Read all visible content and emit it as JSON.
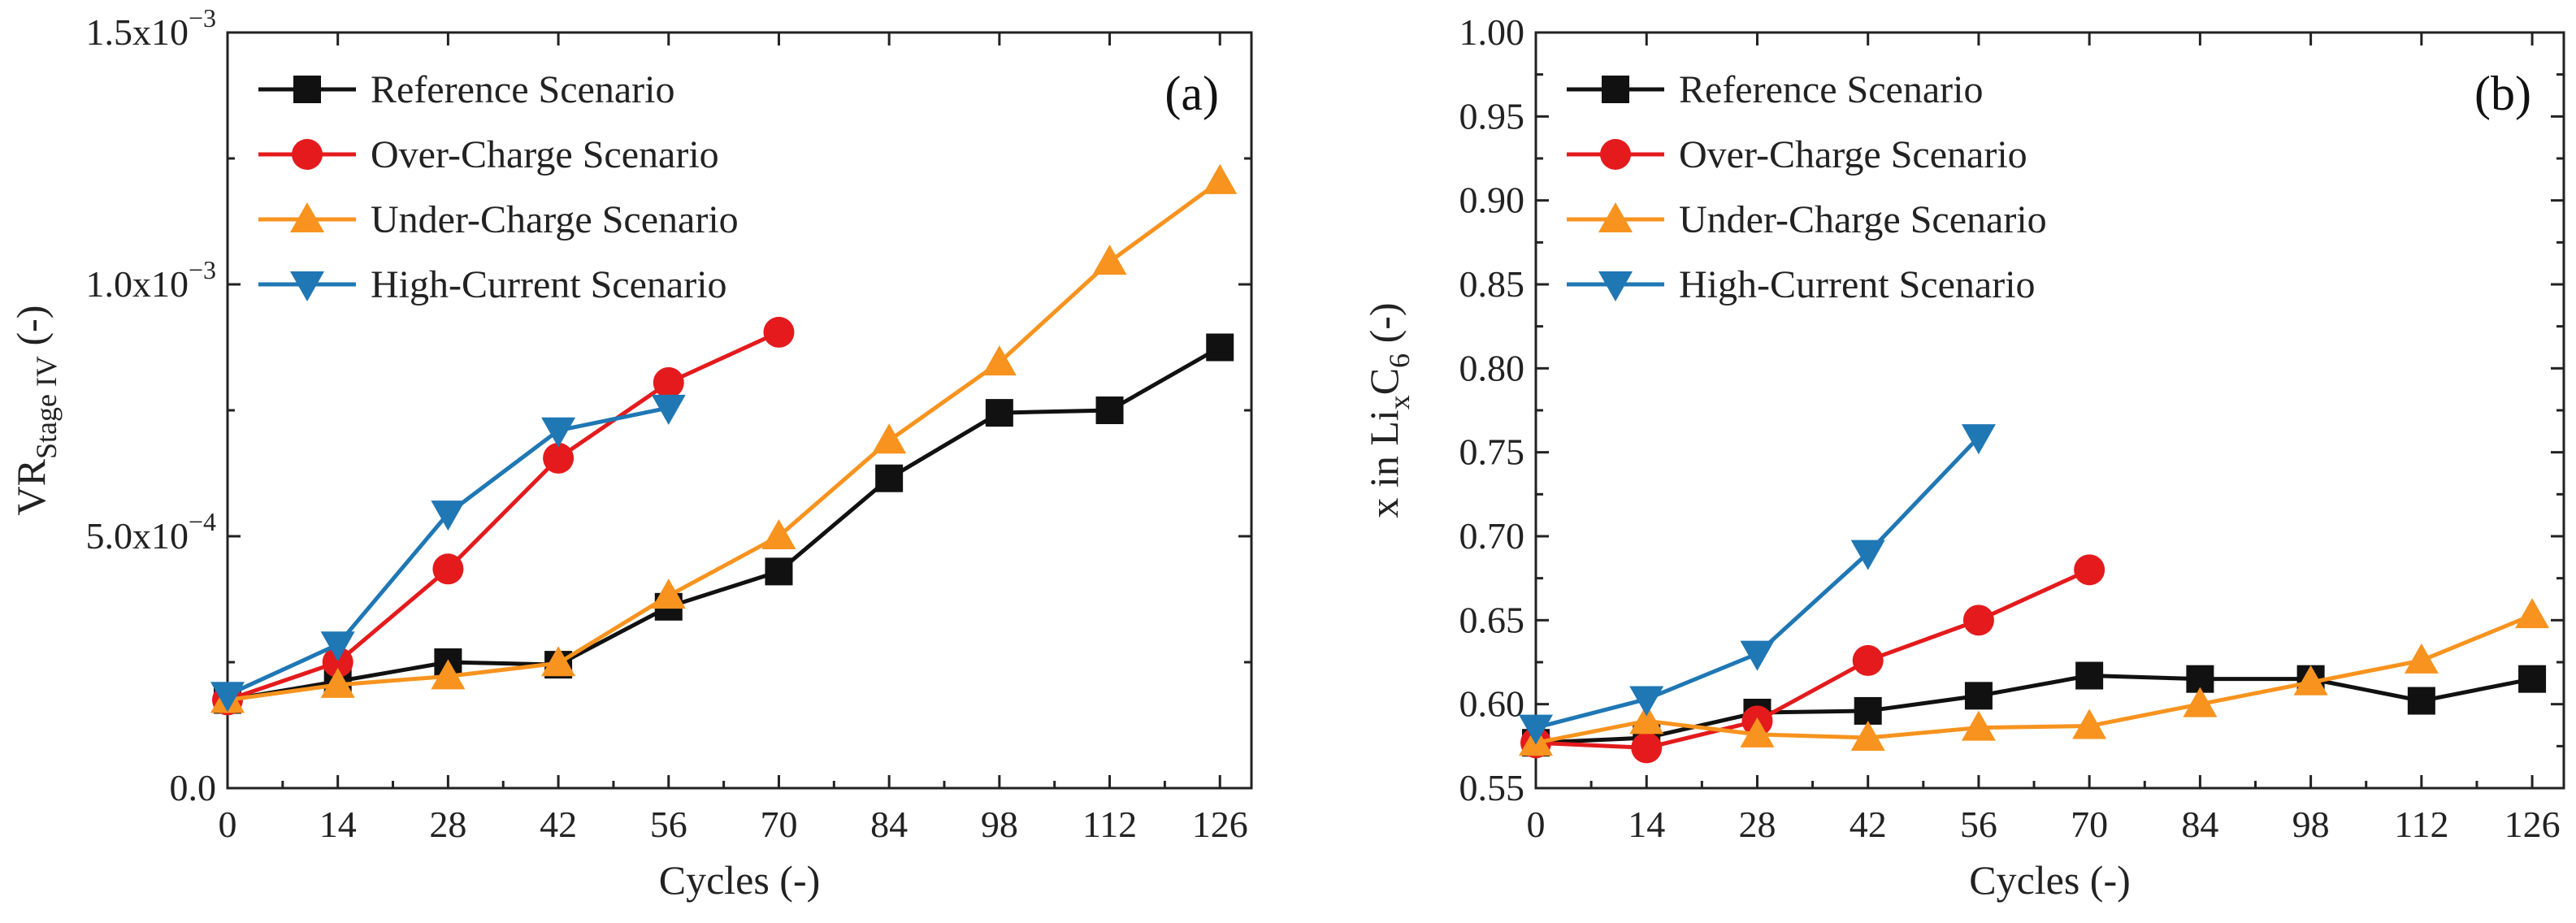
{
  "figure": {
    "colors": {
      "reference": "#111111",
      "over_charge": "#e41a1c",
      "under_charge": "#f7931e",
      "high_current": "#1f77b4"
    }
  },
  "chart_data": [
    {
      "type": "line",
      "panel_label": "(a)",
      "xlabel": "Cycles (-)",
      "ylabel": {
        "base": "VR",
        "subscript": "Stage IV",
        "suffix": " (-)"
      },
      "xlim": [
        0,
        130
      ],
      "ylim": [
        0,
        0.0015
      ],
      "xticks": [
        0,
        14,
        28,
        42,
        56,
        70,
        84,
        98,
        112,
        126
      ],
      "xtick_labels": [
        "0",
        "14",
        "28",
        "42",
        "56",
        "70",
        "84",
        "98",
        "112",
        "126"
      ],
      "yticks": [
        0,
        0.0005,
        0.001,
        0.0015
      ],
      "ytick_labels": [
        {
          "mant": "0.0",
          "exp": ""
        },
        {
          "mant": "5.0x10",
          "exp": "−4"
        },
        {
          "mant": "1.0x10",
          "exp": "−3"
        },
        {
          "mant": "1.5x10",
          "exp": "−3"
        }
      ],
      "legend_position": "top-left",
      "series": [
        {
          "name": "Reference Scenario",
          "marker": "square",
          "color_key": "reference",
          "x": [
            0,
            14,
            28,
            42,
            56,
            70,
            84,
            98,
            112,
            126
          ],
          "y": [
            0.000175,
            0.000212,
            0.00025,
            0.000245,
            0.00036,
            0.00043,
            0.000615,
            0.000745,
            0.00075,
            0.000875
          ]
        },
        {
          "name": "Over-Charge Scenario",
          "marker": "circle",
          "color_key": "over_charge",
          "x": [
            0,
            14,
            28,
            42,
            56,
            70
          ],
          "y": [
            0.000175,
            0.00025,
            0.000435,
            0.000655,
            0.000805,
            0.000905
          ]
        },
        {
          "name": "Under-Charge Scenario",
          "marker": "triangle-up",
          "color_key": "under_charge",
          "x": [
            0,
            14,
            28,
            42,
            56,
            70,
            84,
            98,
            112,
            126
          ],
          "y": [
            0.000175,
            0.000205,
            0.000222,
            0.000248,
            0.000382,
            0.0005,
            0.00069,
            0.000845,
            0.001045,
            0.001205
          ]
        },
        {
          "name": "High-Current Scenario",
          "marker": "triangle-down",
          "color_key": "high_current",
          "x": [
            0,
            14,
            28,
            42,
            56
          ],
          "y": [
            0.000185,
            0.000285,
            0.000545,
            0.00071,
            0.000755
          ]
        }
      ]
    },
    {
      "type": "line",
      "panel_label": "(b)",
      "xlabel": "Cycles (-)",
      "ylabel": {
        "pre": "x in Li",
        "sub1": "x",
        "mid": "C",
        "sub2": "6",
        "suffix": " (-)"
      },
      "xlim": [
        0,
        130
      ],
      "ylim": [
        0.55,
        1.0
      ],
      "xticks": [
        0,
        14,
        28,
        42,
        56,
        70,
        84,
        98,
        112,
        126
      ],
      "xtick_labels": [
        "0",
        "14",
        "28",
        "42",
        "56",
        "70",
        "84",
        "98",
        "112",
        "126"
      ],
      "yticks": [
        0.55,
        0.6,
        0.65,
        0.7,
        0.75,
        0.8,
        0.85,
        0.9,
        0.95,
        1.0
      ],
      "ytick_labels": [
        "0.55",
        "0.60",
        "0.65",
        "0.70",
        "0.75",
        "0.80",
        "0.85",
        "0.90",
        "0.95",
        "1.00"
      ],
      "legend_position": "top-left",
      "series": [
        {
          "name": "Reference Scenario",
          "marker": "square",
          "color_key": "reference",
          "x": [
            0,
            14,
            28,
            42,
            56,
            70,
            84,
            98,
            112,
            126
          ],
          "y": [
            0.577,
            0.58,
            0.595,
            0.596,
            0.605,
            0.617,
            0.615,
            0.615,
            0.602,
            0.615
          ]
        },
        {
          "name": "Over-Charge Scenario",
          "marker": "circle",
          "color_key": "over_charge",
          "x": [
            0,
            14,
            28,
            42,
            56,
            70
          ],
          "y": [
            0.577,
            0.574,
            0.59,
            0.626,
            0.65,
            0.68
          ]
        },
        {
          "name": "Under-Charge Scenario",
          "marker": "triangle-up",
          "color_key": "under_charge",
          "x": [
            0,
            14,
            28,
            42,
            56,
            70,
            84,
            98,
            112,
            126
          ],
          "y": [
            0.577,
            0.59,
            0.582,
            0.58,
            0.586,
            0.587,
            0.6,
            0.613,
            0.626,
            0.653
          ]
        },
        {
          "name": "High-Current Scenario",
          "marker": "triangle-down",
          "color_key": "high_current",
          "x": [
            0,
            14,
            28,
            42,
            56
          ],
          "y": [
            0.586,
            0.603,
            0.63,
            0.69,
            0.759
          ]
        }
      ]
    }
  ]
}
